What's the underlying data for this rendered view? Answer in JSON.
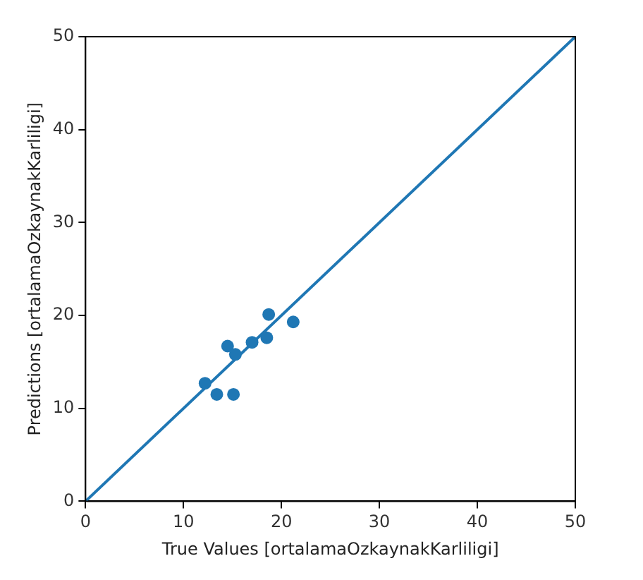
{
  "chart_data": {
    "type": "scatter",
    "xlabel": "True Values [ortalamaOzkaynakKarliligi]",
    "ylabel": "Predictions [ortalamaOzkaynakKarliligi]",
    "xlim": [
      0,
      50
    ],
    "ylim": [
      0,
      50
    ],
    "xticks": [
      0,
      10,
      20,
      30,
      40,
      50
    ],
    "yticks": [
      0,
      10,
      20,
      30,
      40,
      50
    ],
    "grid": false,
    "legend": false,
    "marker": "circle",
    "series": [
      {
        "color": "#1f77b4",
        "x": [
          12.2,
          13.4,
          15.1,
          14.5,
          15.3,
          17.0,
          18.5,
          18.7,
          21.2
        ],
        "values": [
          12.7,
          11.5,
          11.5,
          16.7,
          15.8,
          17.1,
          17.6,
          20.1,
          19.3
        ]
      },
      {
        "type": "line",
        "color": "#1f77b4",
        "x": [
          0,
          50
        ],
        "values": [
          0,
          50
        ],
        "marker": "none"
      }
    ]
  }
}
